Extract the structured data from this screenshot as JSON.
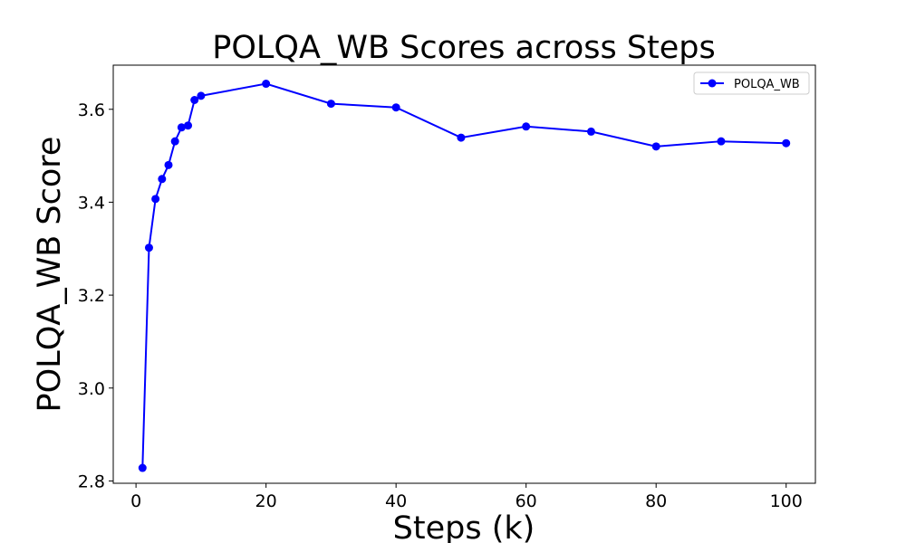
{
  "chart_data": {
    "type": "line",
    "title": "POLQA_WB Scores across Steps",
    "xlabel": "Steps (k)",
    "ylabel": "POLQA_WB Score",
    "xlim": [
      -3.5,
      104.5
    ],
    "ylim": [
      2.795,
      3.695
    ],
    "xticks": [
      0,
      20,
      40,
      60,
      80,
      100
    ],
    "yticks": [
      2.8,
      3.0,
      3.2,
      3.4,
      3.6
    ],
    "xtick_labels": [
      "0",
      "20",
      "40",
      "60",
      "80",
      "100"
    ],
    "ytick_labels": [
      "2.8",
      "3.0",
      "3.2",
      "3.4",
      "3.6"
    ],
    "grid": false,
    "legend_position": "top-right",
    "series": [
      {
        "name": "POLQA_WB",
        "color": "#0000ff",
        "marker": "circle",
        "x": [
          1,
          2,
          3,
          4,
          5,
          6,
          7,
          8,
          9,
          10,
          20,
          30,
          40,
          50,
          60,
          70,
          80,
          90,
          100
        ],
        "y": [
          2.828,
          3.302,
          3.407,
          3.45,
          3.48,
          3.531,
          3.561,
          3.565,
          3.62,
          3.629,
          3.655,
          3.612,
          3.604,
          3.539,
          3.563,
          3.552,
          3.52,
          3.531,
          3.527
        ]
      }
    ]
  }
}
